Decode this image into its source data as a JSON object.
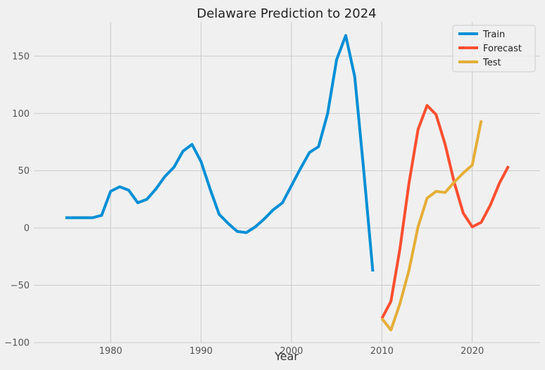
{
  "chart_data": {
    "type": "line",
    "title": "Delaware Prediction to 2024",
    "xlabel": "Year",
    "ylabel": "",
    "xlim": [
      1971.5,
      2027.5
    ],
    "ylim": [
      -100,
      180
    ],
    "x_ticks": [
      1980,
      1990,
      2000,
      2010,
      2020
    ],
    "y_ticks": [
      -100,
      -50,
      0,
      50,
      100,
      150
    ],
    "grid": true,
    "legend_position": "top-right",
    "series": [
      {
        "name": "Train",
        "color": "#008fd5",
        "x": [
          1975,
          1976,
          1977,
          1978,
          1979,
          1980,
          1981,
          1982,
          1983,
          1984,
          1985,
          1986,
          1987,
          1988,
          1989,
          1990,
          1991,
          1992,
          1993,
          1994,
          1995,
          1996,
          1997,
          1998,
          1999,
          2000,
          2001,
          2002,
          2003,
          2004,
          2005,
          2006,
          2007,
          2008,
          2009
        ],
        "y": [
          9,
          9,
          9,
          9,
          11,
          32,
          36,
          33,
          22,
          25,
          34,
          45,
          53,
          67,
          73,
          58,
          34,
          12,
          4,
          -3,
          -4,
          1,
          8,
          16,
          22,
          37,
          52,
          66,
          71,
          100,
          147,
          168,
          132,
          50,
          -38
        ]
      },
      {
        "name": "Forecast",
        "color": "#fc4f30",
        "x": [
          2010,
          2011,
          2012,
          2013,
          2014,
          2015,
          2016,
          2017,
          2018,
          2019,
          2020,
          2021,
          2022,
          2023,
          2024
        ],
        "y": [
          -79,
          -64,
          -18,
          39,
          86,
          107,
          99,
          73,
          40,
          13,
          1,
          5,
          20,
          39,
          54
        ]
      },
      {
        "name": "Test",
        "color": "#e5ae38",
        "x": [
          2010,
          2011,
          2012,
          2013,
          2014,
          2015,
          2016,
          2017,
          2018,
          2019,
          2020,
          2021
        ],
        "y": [
          -79,
          -89,
          -66,
          -37,
          1,
          26,
          32,
          31,
          40,
          48,
          55,
          94
        ]
      }
    ]
  }
}
